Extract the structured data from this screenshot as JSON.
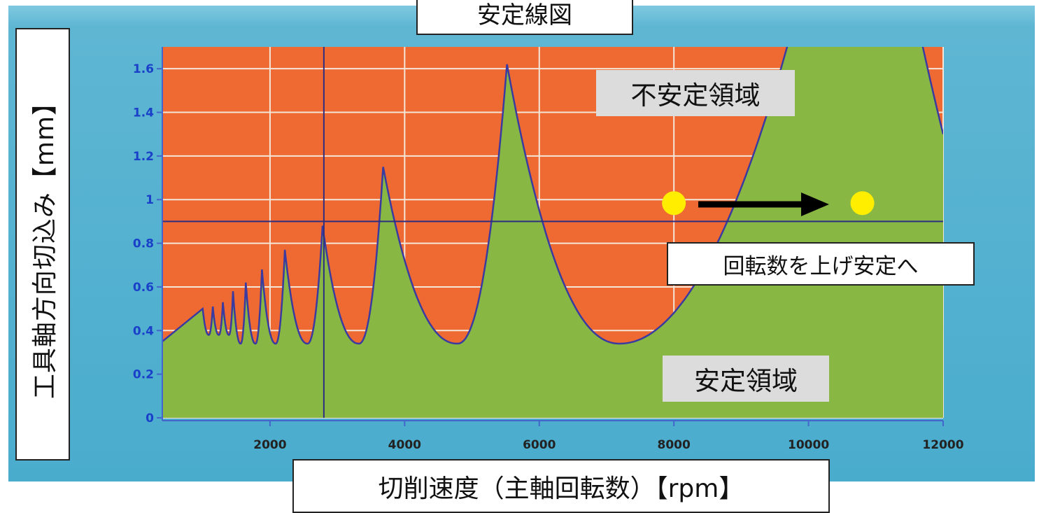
{
  "chart_data": {
    "type": "line",
    "title": "安定線図",
    "xlabel": "切削速度（主軸回転数）【rpm】",
    "ylabel": "工具軸方向切込み【mm】",
    "xlim": [
      400,
      12000
    ],
    "ylim": [
      0,
      1.7
    ],
    "x_ticks": [
      "2000",
      "4000",
      "6000",
      "8000",
      "10000",
      "12000"
    ],
    "x_tick_values": [
      2000,
      4000,
      6000,
      8000,
      10000,
      12000
    ],
    "y_ticks": [
      "0",
      "0.2",
      "0.4",
      "0.6",
      "0.8",
      "1",
      "1.2",
      "1.4",
      "1.6"
    ],
    "y_tick_values": [
      0,
      0.2,
      0.4,
      0.6,
      0.8,
      1.0,
      1.2,
      1.4,
      1.6
    ],
    "grid": true,
    "reference_lines": {
      "vertical_rpm": 2800,
      "horizontal_depth": 0.9
    },
    "lobes": [
      {
        "peak_x": 1000,
        "peak_y": 0.5
      },
      {
        "peak_x": 1150,
        "peak_y": 0.51
      },
      {
        "peak_x": 1300,
        "peak_y": 0.53
      },
      {
        "peak_x": 1450,
        "peak_y": 0.58
      },
      {
        "peak_x": 1640,
        "peak_y": 0.62
      },
      {
        "peak_x": 1880,
        "peak_y": 0.68
      },
      {
        "peak_x": 2220,
        "peak_y": 0.77
      },
      {
        "peak_x": 2780,
        "peak_y": 0.88
      },
      {
        "peak_x": 3680,
        "peak_y": 1.15
      },
      {
        "peak_x": 5520,
        "peak_y": 1.62
      }
    ],
    "curve_min_depth": 0.34,
    "colors": {
      "unstable": "#ef6a32",
      "stable": "#88b843",
      "line": "#3a3aa0",
      "point": "#ffee00",
      "tick_text": "#1a3fc8"
    },
    "points": [
      {
        "x": 8000,
        "y": 1.0
      },
      {
        "x": 10800,
        "y": 1.0
      }
    ]
  },
  "annotations": {
    "unstable_label": "不安定領域",
    "stable_label": "安定領域",
    "arrow_label": "回転数を上げ安定へ"
  }
}
